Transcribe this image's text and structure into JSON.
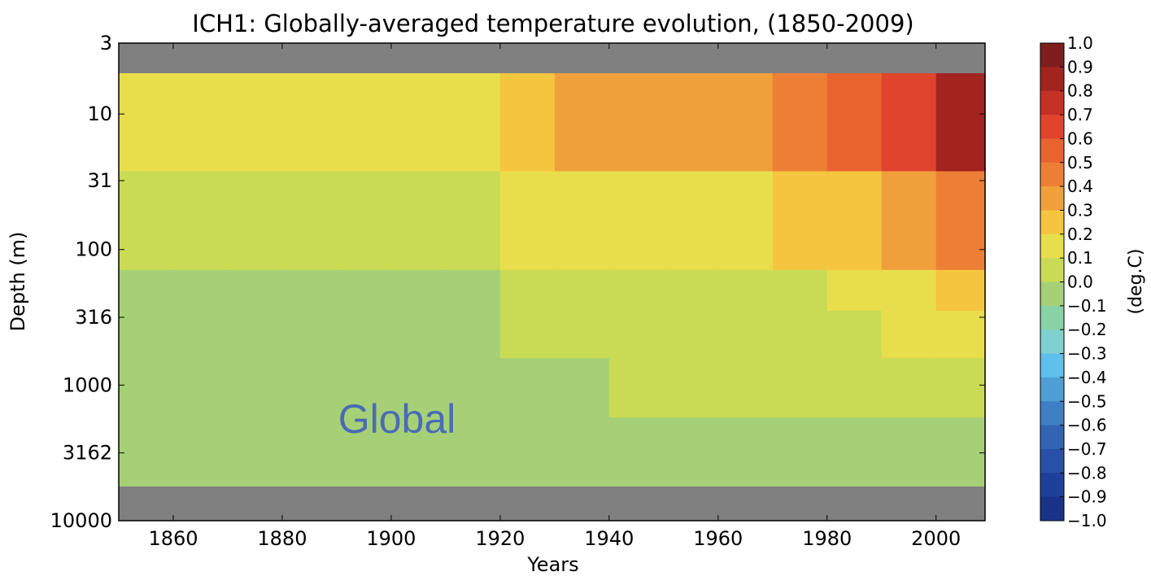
{
  "chart_data": {
    "type": "heatmap",
    "title": "ICH1: Globally-averaged temperature evolution, (1850-2009)",
    "xlabel": "Years",
    "ylabel": "Depth (m)",
    "xlim": [
      1850,
      2009
    ],
    "ylim": [
      3,
      10000
    ],
    "y_scale": "log",
    "y_inverted": true,
    "x_ticks": [
      1860,
      1880,
      1900,
      1920,
      1940,
      1960,
      1980,
      2000
    ],
    "y_ticks": [
      "3",
      "10",
      "31",
      "100",
      "316",
      "1000",
      "3162",
      "10000"
    ],
    "annotation": "Global",
    "no_data_bands_depth_m": [
      [
        3,
        5
      ],
      [
        5600,
        10000
      ]
    ],
    "colorbar": {
      "label": "(deg.C)",
      "ticks": [
        "1.0",
        "0.9",
        "0.8",
        "0.7",
        "0.6",
        "0.5",
        "0.4",
        "0.3",
        "0.2",
        "0.1",
        "0.0",
        "−0.1",
        "−0.2",
        "−0.3",
        "−0.4",
        "−0.5",
        "−0.6",
        "−0.7",
        "−0.8",
        "−0.9",
        "−1.0"
      ],
      "colors_top_to_bottom": [
        "#7f1d1d",
        "#a3231f",
        "#c63126",
        "#e0442d",
        "#e9632f",
        "#ec7f33",
        "#f0a03b",
        "#f5c53f",
        "#e8de4c",
        "#c9db55",
        "#a6d076",
        "#88d2a6",
        "#7fd0cf",
        "#5ec0eb",
        "#4f9fd4",
        "#3f7fc4",
        "#3165b4",
        "#2850a6",
        "#1f409a",
        "#1a3389"
      ]
    },
    "series": [
      {
        "depth_m": 7,
        "x": [
          1850,
          1860,
          1870,
          1880,
          1890,
          1900,
          1910,
          1920,
          1930,
          1940,
          1950,
          1960,
          1970,
          1980,
          1990,
          2000,
          2009
        ],
        "values": [
          0.2,
          0.15,
          0.2,
          0.15,
          0.15,
          0.2,
          0.15,
          0.25,
          0.3,
          0.3,
          0.3,
          0.3,
          0.35,
          0.55,
          0.5,
          0.75,
          0.85
        ]
      },
      {
        "depth_m": 100,
        "x": [
          1850,
          1860,
          1870,
          1880,
          1890,
          1900,
          1910,
          1920,
          1930,
          1940,
          1950,
          1960,
          1970,
          1980,
          1990,
          2000,
          2009
        ],
        "values": [
          0.05,
          0.05,
          0.1,
          0.1,
          0.1,
          0.1,
          0.1,
          0.1,
          0.15,
          0.2,
          0.2,
          0.2,
          0.2,
          0.25,
          0.25,
          0.4,
          0.5
        ]
      },
      {
        "depth_m": 200,
        "x": [
          1850,
          1860,
          1870,
          1880,
          1890,
          1900,
          1910,
          1920,
          1930,
          1940,
          1950,
          1960,
          1970,
          1980,
          1990,
          2000,
          2009
        ],
        "values": [
          -0.05,
          -0.1,
          -0.05,
          -0.05,
          -0.1,
          -0.05,
          -0.05,
          0.0,
          0.05,
          0.05,
          0.05,
          0.1,
          0.1,
          0.1,
          0.15,
          0.2,
          0.3
        ]
      },
      {
        "depth_m": 400,
        "x": [
          1850,
          1860,
          1870,
          1880,
          1890,
          1900,
          1910,
          1920,
          1930,
          1940,
          1950,
          1960,
          1970,
          1980,
          1990,
          2000,
          2009
        ],
        "values": [
          0.0,
          0.0,
          0.0,
          0.0,
          0.0,
          0.0,
          0.0,
          0.0,
          0.05,
          0.05,
          0.05,
          0.05,
          0.1,
          0.1,
          0.1,
          0.15,
          0.2
        ]
      },
      {
        "depth_m": 1000,
        "x": [
          1850,
          1860,
          1870,
          1880,
          1890,
          1900,
          1910,
          1920,
          1930,
          1940,
          1950,
          1960,
          1970,
          1980,
          1990,
          2000,
          2009
        ],
        "values": [
          0.0,
          0.0,
          0.0,
          0.0,
          0.0,
          0.0,
          0.0,
          0.0,
          0.0,
          0.0,
          0.05,
          0.05,
          0.05,
          0.05,
          0.1,
          0.1,
          0.1
        ]
      },
      {
        "depth_m": 3000,
        "x": [
          1850,
          1860,
          1870,
          1880,
          1890,
          1900,
          1910,
          1920,
          1930,
          1940,
          1950,
          1960,
          1970,
          1980,
          1990,
          2000,
          2009
        ],
        "values": [
          0.0,
          0.0,
          0.0,
          0.0,
          0.0,
          0.0,
          0.0,
          0.0,
          0.0,
          0.0,
          0.0,
          0.0,
          0.0,
          0.0,
          0.0,
          0.0,
          0.0
        ]
      }
    ]
  }
}
